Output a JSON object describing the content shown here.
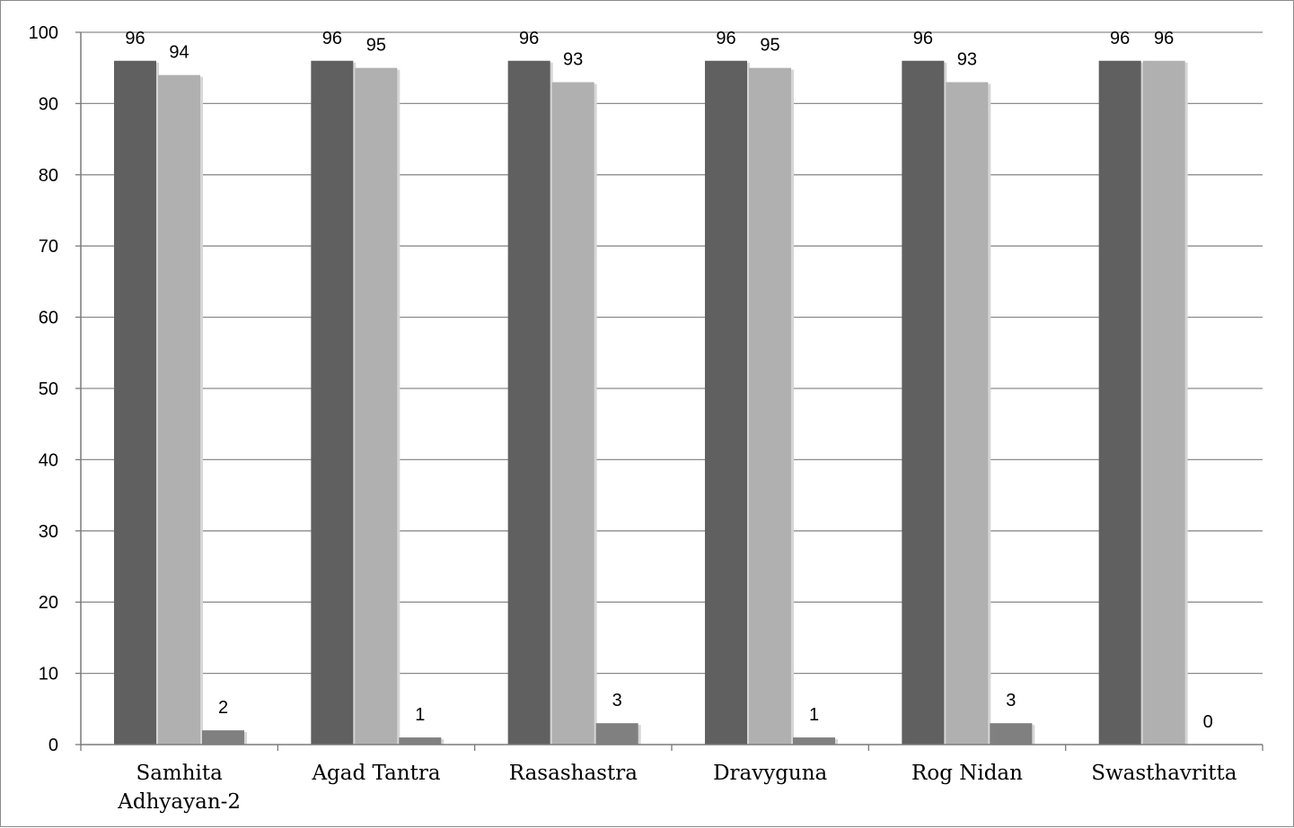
{
  "chart_data": {
    "type": "bar",
    "categories": [
      [
        "Samhita",
        "Adhyayan-2"
      ],
      [
        "Agad Tantra"
      ],
      [
        "Rasashastra"
      ],
      [
        "Dravyguna"
      ],
      [
        "Rog Nidan"
      ],
      [
        "Swasthavritta"
      ]
    ],
    "series": [
      {
        "values": [
          96,
          96,
          96,
          96,
          96,
          96
        ],
        "color": "#606060"
      },
      {
        "values": [
          94,
          95,
          93,
          95,
          93,
          96
        ],
        "color": "#b0b0b0"
      },
      {
        "values": [
          2,
          1,
          3,
          1,
          3,
          0
        ],
        "color": "#808080"
      }
    ],
    "ylim": [
      0,
      100
    ],
    "yticks": [
      0,
      10,
      20,
      30,
      40,
      50,
      60,
      70,
      80,
      90,
      100
    ],
    "grid": true,
    "data_labels": true,
    "legend": "none"
  }
}
